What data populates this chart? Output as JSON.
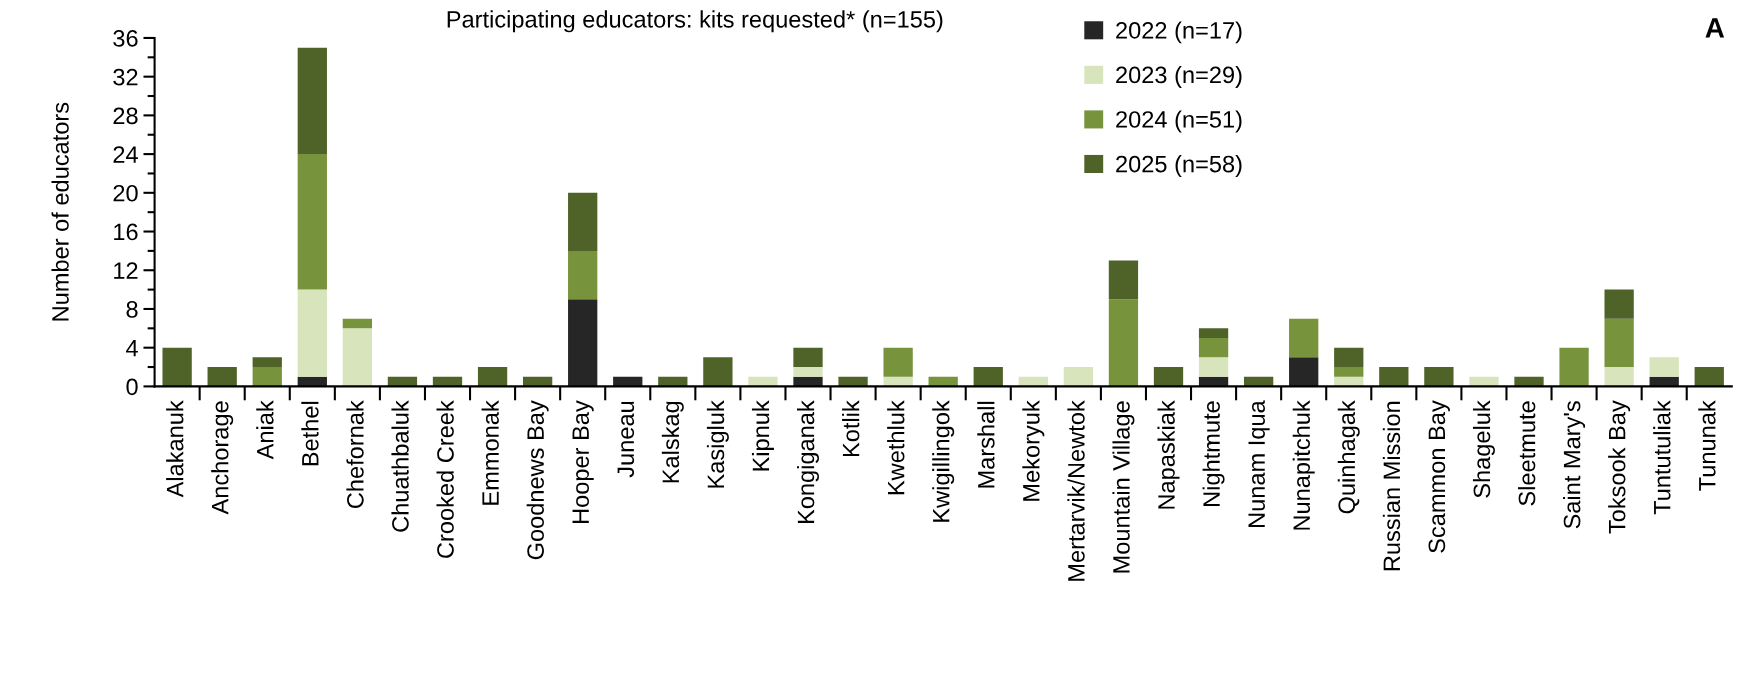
{
  "chart_data": {
    "type": "bar",
    "stacked": true,
    "title": "Participating educators: kits requested* (n=155)",
    "ylabel": "Number of educators",
    "annotations": [
      "A"
    ],
    "categories": [
      "Alakanuk",
      "Anchorage",
      "Aniak",
      "Bethel",
      "Chefornak",
      "Chuathbaluk",
      "Crooked Creek",
      "Emmonak",
      "Goodnews Bay",
      "Hooper Bay",
      "Juneau",
      "Kalskag",
      "Kasigluk",
      "Kipnuk",
      "Kongiganak",
      "Kotlik",
      "Kwethluk",
      "Kwigillingok",
      "Marshall",
      "Mekoryuk",
      "Mertarvik/Newtok",
      "Mountain Village",
      "Napaskiak",
      "Nightmute",
      "Nunam Iqua",
      "Nunapitchuk",
      "Quinhagak",
      "Russian Mission",
      "Scammon Bay",
      "Shageluk",
      "Sleetmute",
      "Saint Mary's",
      "Toksook Bay",
      "Tuntutuliak",
      "Tununak"
    ],
    "series": [
      {
        "name": "2022 (n=17)",
        "color": "#262626",
        "values": [
          0,
          0,
          0,
          1,
          0,
          0,
          0,
          0,
          0,
          9,
          1,
          0,
          0,
          0,
          1,
          0,
          0,
          0,
          0,
          0,
          0,
          0,
          0,
          1,
          0,
          3,
          0,
          0,
          0,
          0,
          0,
          0,
          0,
          1,
          0
        ]
      },
      {
        "name": "2023 (n=29)",
        "color": "#d8e4bc",
        "values": [
          0,
          0,
          0,
          9,
          6,
          0,
          0,
          0,
          0,
          0,
          0,
          0,
          0,
          1,
          1,
          0,
          1,
          0,
          0,
          1,
          2,
          0,
          0,
          2,
          0,
          0,
          1,
          0,
          0,
          1,
          0,
          0,
          2,
          2,
          0
        ]
      },
      {
        "name": "2024 (n=51)",
        "color": "#77933c",
        "values": [
          0,
          0,
          2,
          14,
          1,
          0,
          0,
          0,
          0,
          5,
          0,
          0,
          0,
          0,
          0,
          0,
          3,
          1,
          0,
          0,
          0,
          9,
          0,
          2,
          0,
          4,
          1,
          0,
          0,
          0,
          0,
          4,
          5,
          0,
          0
        ]
      },
      {
        "name": "2025 (n=58)",
        "color": "#4f6228",
        "values": [
          4,
          2,
          1,
          11,
          0,
          1,
          1,
          2,
          1,
          6,
          0,
          1,
          3,
          0,
          2,
          1,
          0,
          0,
          2,
          0,
          0,
          4,
          2,
          1,
          1,
          0,
          2,
          2,
          2,
          0,
          1,
          0,
          3,
          0,
          2
        ]
      }
    ],
    "ylim": [
      0,
      36
    ],
    "yticks": [
      0,
      4,
      8,
      12,
      16,
      20,
      24,
      28,
      32,
      36
    ],
    "grid": false,
    "legend": "top right"
  }
}
